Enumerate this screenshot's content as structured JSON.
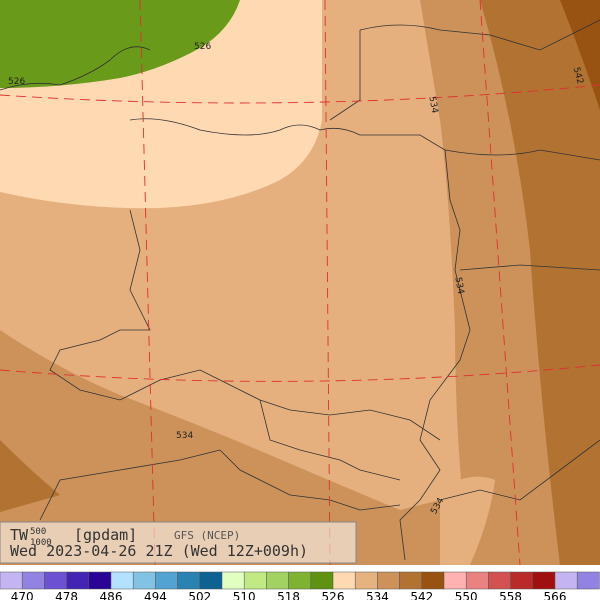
{
  "map": {
    "contour_labels": [
      "526",
      "526",
      "534",
      "534",
      "534",
      "534",
      "542"
    ]
  },
  "legend": {
    "variable": "TW",
    "superscript": "500",
    "subscript": "1000",
    "unit": "[gpdam]",
    "model": "GFS (NCEP)",
    "valid_time": "Wed 2023-04-26 21Z (Wed 12Z+009h)"
  },
  "colorbar": {
    "colors": [
      "#c4b4f2",
      "#9282e2",
      "#6c52d2",
      "#4424b4",
      "#2a0494",
      "#b2e2ff",
      "#82c2e2",
      "#52a2d2",
      "#2a82b2",
      "#0e6292",
      "#e2ffc2",
      "#c2ea82",
      "#a2d262",
      "#80b232",
      "#609212",
      "#ffd9b2",
      "#e6b27e",
      "#cc925a",
      "#b27232",
      "#985212",
      "#ffb2b2",
      "#ea8282",
      "#d25252",
      "#ba2a2a",
      "#a01010",
      "#c4b4f2",
      "#9282e2"
    ],
    "labels": [
      "470",
      "478",
      "486",
      "494",
      "502",
      "510",
      "518",
      "526",
      "534",
      "542",
      "550",
      "558",
      "566"
    ]
  }
}
